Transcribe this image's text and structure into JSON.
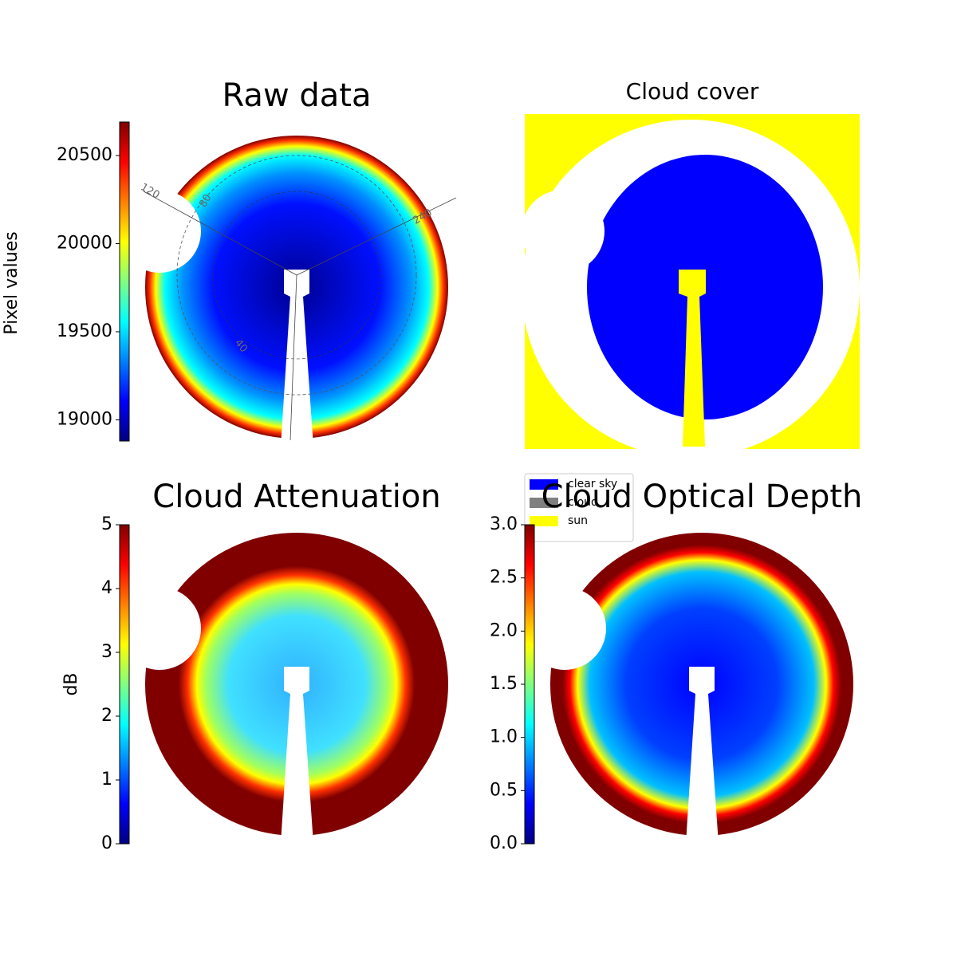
{
  "chart_data": [
    {
      "type": "image",
      "title": "Raw data",
      "colorbar_label": "Pixel values",
      "colormap": "jet",
      "ylim": [
        18880,
        20690
      ],
      "yticks": [
        19000,
        19500,
        20000,
        20500
      ],
      "annotations": [
        "120",
        "240",
        "80",
        "40"
      ]
    },
    {
      "type": "image",
      "title": "Cloud cover",
      "legend": "lower left",
      "legend_entries": [
        {
          "name": "clear sky",
          "color": "#0000ff"
        },
        {
          "name": "cloud",
          "color": "#808080"
        },
        {
          "name": "sun",
          "color": "#ffff00"
        }
      ]
    },
    {
      "type": "image",
      "title": "Cloud Attenuation",
      "colorbar_label": "dB",
      "colormap": "jet",
      "ylim": [
        0,
        5
      ],
      "yticks": [
        0,
        1,
        2,
        3,
        4,
        5
      ]
    },
    {
      "type": "image",
      "title": "Cloud Optical Depth",
      "colormap": "jet",
      "ylim": [
        0,
        3
      ],
      "yticks": [
        {
          "value": 0,
          "label": "0.0"
        },
        {
          "value": 0.5,
          "label": "0.5"
        },
        {
          "value": 1,
          "label": "1.0"
        },
        {
          "value": 1.5,
          "label": "1.5"
        },
        {
          "value": 2,
          "label": "2.0"
        },
        {
          "value": 2.5,
          "label": "2.5"
        },
        {
          "value": 3,
          "label": "3.0"
        }
      ]
    }
  ]
}
